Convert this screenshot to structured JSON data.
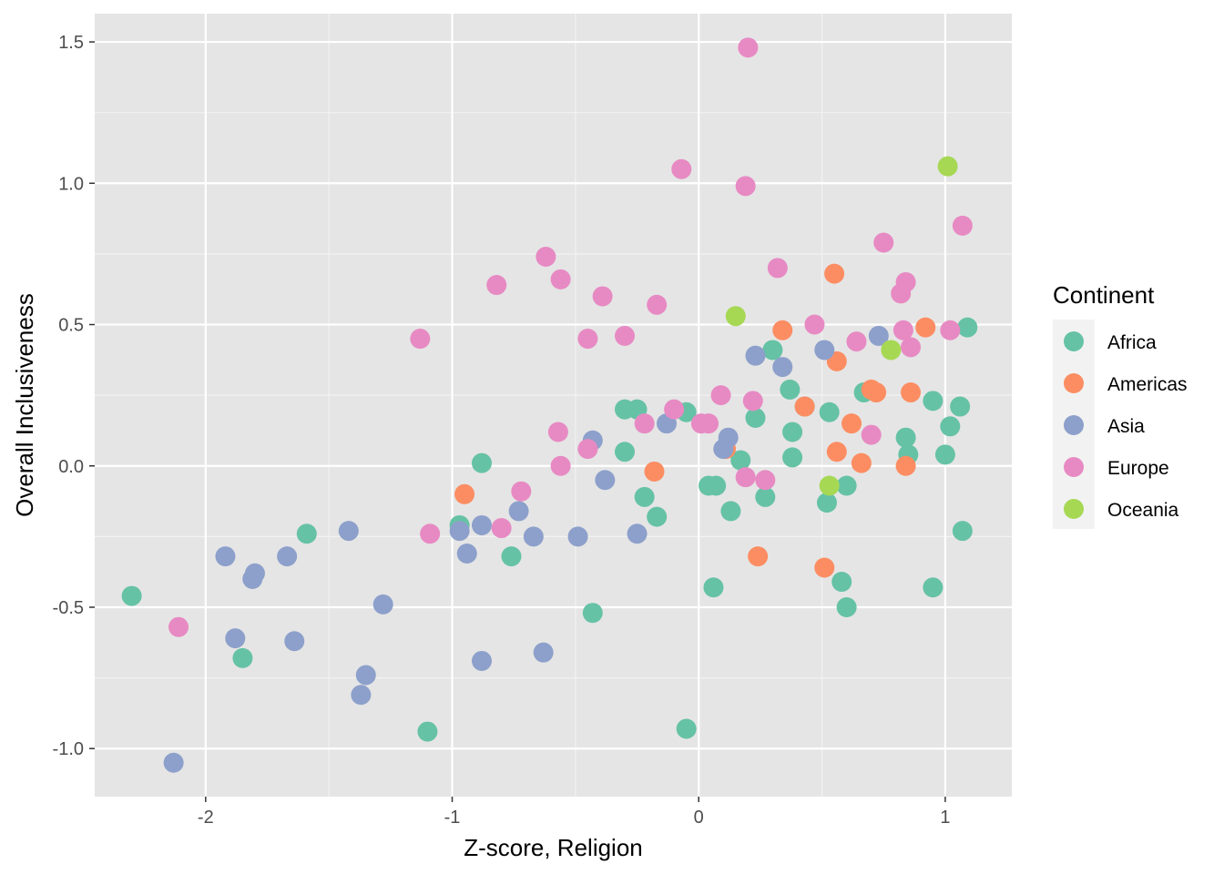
{
  "chart_data": {
    "type": "scatter",
    "title": "",
    "xlabel": "Z-score, Religion",
    "ylabel": "Overall Inclusiveness",
    "xlim": [
      -2.45,
      1.27
    ],
    "ylim": [
      -1.17,
      1.6
    ],
    "x_ticks": [
      -2,
      -1,
      0,
      1
    ],
    "x_tick_labels": [
      "-2",
      "-1",
      "0",
      "1"
    ],
    "y_ticks": [
      -1.0,
      -0.5,
      0.0,
      0.5,
      1.0,
      1.5
    ],
    "y_tick_labels": [
      "-1.0",
      "-0.5",
      "0.0",
      "0.5",
      "1.0",
      "1.5"
    ],
    "grid": true,
    "background": "#e5e5e5",
    "legend": {
      "title": "Continent",
      "position": "right"
    },
    "series": [
      {
        "name": "Africa",
        "color": "#66c2a5",
        "points": [
          [
            -2.3,
            -0.46
          ],
          [
            -1.85,
            -0.68
          ],
          [
            -1.59,
            -0.24
          ],
          [
            -1.1,
            -0.94
          ],
          [
            -0.97,
            -0.21
          ],
          [
            -0.88,
            0.01
          ],
          [
            -0.76,
            -0.32
          ],
          [
            -0.43,
            -0.52
          ],
          [
            -0.3,
            0.2
          ],
          [
            -0.3,
            0.05
          ],
          [
            -0.25,
            0.2
          ],
          [
            -0.22,
            -0.11
          ],
          [
            -0.17,
            -0.18
          ],
          [
            -0.05,
            0.19
          ],
          [
            -0.05,
            -0.93
          ],
          [
            0.04,
            -0.07
          ],
          [
            0.06,
            -0.43
          ],
          [
            0.07,
            -0.07
          ],
          [
            0.13,
            -0.16
          ],
          [
            0.17,
            0.02
          ],
          [
            0.23,
            0.17
          ],
          [
            0.27,
            -0.11
          ],
          [
            0.3,
            0.41
          ],
          [
            0.37,
            0.27
          ],
          [
            0.38,
            0.12
          ],
          [
            0.38,
            0.03
          ],
          [
            0.43,
            0.21
          ],
          [
            0.52,
            -0.13
          ],
          [
            0.53,
            0.19
          ],
          [
            0.58,
            -0.41
          ],
          [
            0.6,
            -0.07
          ],
          [
            0.6,
            -0.5
          ],
          [
            0.67,
            0.26
          ],
          [
            0.84,
            0.1
          ],
          [
            0.85,
            0.04
          ],
          [
            0.95,
            0.23
          ],
          [
            0.95,
            -0.43
          ],
          [
            1.0,
            0.04
          ],
          [
            1.02,
            0.14
          ],
          [
            1.06,
            0.21
          ],
          [
            1.07,
            -0.23
          ],
          [
            1.09,
            0.49
          ]
        ]
      },
      {
        "name": "Americas",
        "color": "#fc8d62",
        "points": [
          [
            -0.95,
            -0.1
          ],
          [
            -0.18,
            -0.02
          ],
          [
            0.11,
            0.06
          ],
          [
            0.24,
            -0.32
          ],
          [
            0.34,
            0.48
          ],
          [
            0.43,
            0.21
          ],
          [
            0.51,
            -0.36
          ],
          [
            0.55,
            0.68
          ],
          [
            0.56,
            0.37
          ],
          [
            0.56,
            0.05
          ],
          [
            0.62,
            0.15
          ],
          [
            0.66,
            0.01
          ],
          [
            0.7,
            0.27
          ],
          [
            0.72,
            0.26
          ],
          [
            0.84,
            0.0
          ],
          [
            0.86,
            0.26
          ],
          [
            0.92,
            0.49
          ]
        ]
      },
      {
        "name": "Asia",
        "color": "#8da0cb",
        "points": [
          [
            -2.13,
            -1.05
          ],
          [
            -1.92,
            -0.32
          ],
          [
            -1.88,
            -0.61
          ],
          [
            -1.81,
            -0.4
          ],
          [
            -1.8,
            -0.38
          ],
          [
            -1.67,
            -0.32
          ],
          [
            -1.64,
            -0.62
          ],
          [
            -1.42,
            -0.23
          ],
          [
            -1.37,
            -0.81
          ],
          [
            -1.35,
            -0.74
          ],
          [
            -1.28,
            -0.49
          ],
          [
            -0.97,
            -0.23
          ],
          [
            -0.94,
            -0.31
          ],
          [
            -0.88,
            -0.21
          ],
          [
            -0.88,
            -0.69
          ],
          [
            -0.73,
            -0.16
          ],
          [
            -0.67,
            -0.25
          ],
          [
            -0.63,
            -0.66
          ],
          [
            -0.49,
            -0.25
          ],
          [
            -0.43,
            0.09
          ],
          [
            -0.38,
            -0.05
          ],
          [
            -0.25,
            -0.24
          ],
          [
            -0.13,
            0.15
          ],
          [
            0.1,
            0.06
          ],
          [
            0.12,
            0.1
          ],
          [
            0.23,
            0.39
          ],
          [
            0.34,
            0.35
          ],
          [
            0.51,
            0.41
          ],
          [
            0.73,
            0.46
          ]
        ]
      },
      {
        "name": "Europe",
        "color": "#e78ac3",
        "points": [
          [
            -2.11,
            -0.57
          ],
          [
            -1.13,
            0.45
          ],
          [
            -1.09,
            -0.24
          ],
          [
            -0.82,
            0.64
          ],
          [
            -0.8,
            -0.22
          ],
          [
            -0.72,
            -0.09
          ],
          [
            -0.62,
            0.74
          ],
          [
            -0.57,
            0.12
          ],
          [
            -0.56,
            0.66
          ],
          [
            -0.56,
            0.0
          ],
          [
            -0.45,
            0.45
          ],
          [
            -0.45,
            0.06
          ],
          [
            -0.39,
            0.6
          ],
          [
            -0.3,
            0.46
          ],
          [
            -0.22,
            0.15
          ],
          [
            -0.17,
            0.57
          ],
          [
            -0.1,
            0.2
          ],
          [
            -0.07,
            1.05
          ],
          [
            0.01,
            0.15
          ],
          [
            0.04,
            0.15
          ],
          [
            0.09,
            0.25
          ],
          [
            0.19,
            -0.04
          ],
          [
            0.19,
            0.99
          ],
          [
            0.2,
            1.48
          ],
          [
            0.22,
            0.23
          ],
          [
            0.27,
            -0.05
          ],
          [
            0.32,
            0.7
          ],
          [
            0.47,
            0.5
          ],
          [
            0.64,
            0.44
          ],
          [
            0.7,
            0.11
          ],
          [
            0.75,
            0.79
          ],
          [
            0.82,
            0.61
          ],
          [
            0.83,
            0.48
          ],
          [
            0.84,
            0.65
          ],
          [
            0.86,
            0.42
          ],
          [
            1.02,
            0.48
          ],
          [
            1.07,
            0.85
          ]
        ]
      },
      {
        "name": "Oceania",
        "color": "#a6d854",
        "points": [
          [
            0.15,
            0.53
          ],
          [
            0.53,
            -0.07
          ],
          [
            0.78,
            0.41
          ],
          [
            1.01,
            1.06
          ]
        ]
      }
    ]
  }
}
